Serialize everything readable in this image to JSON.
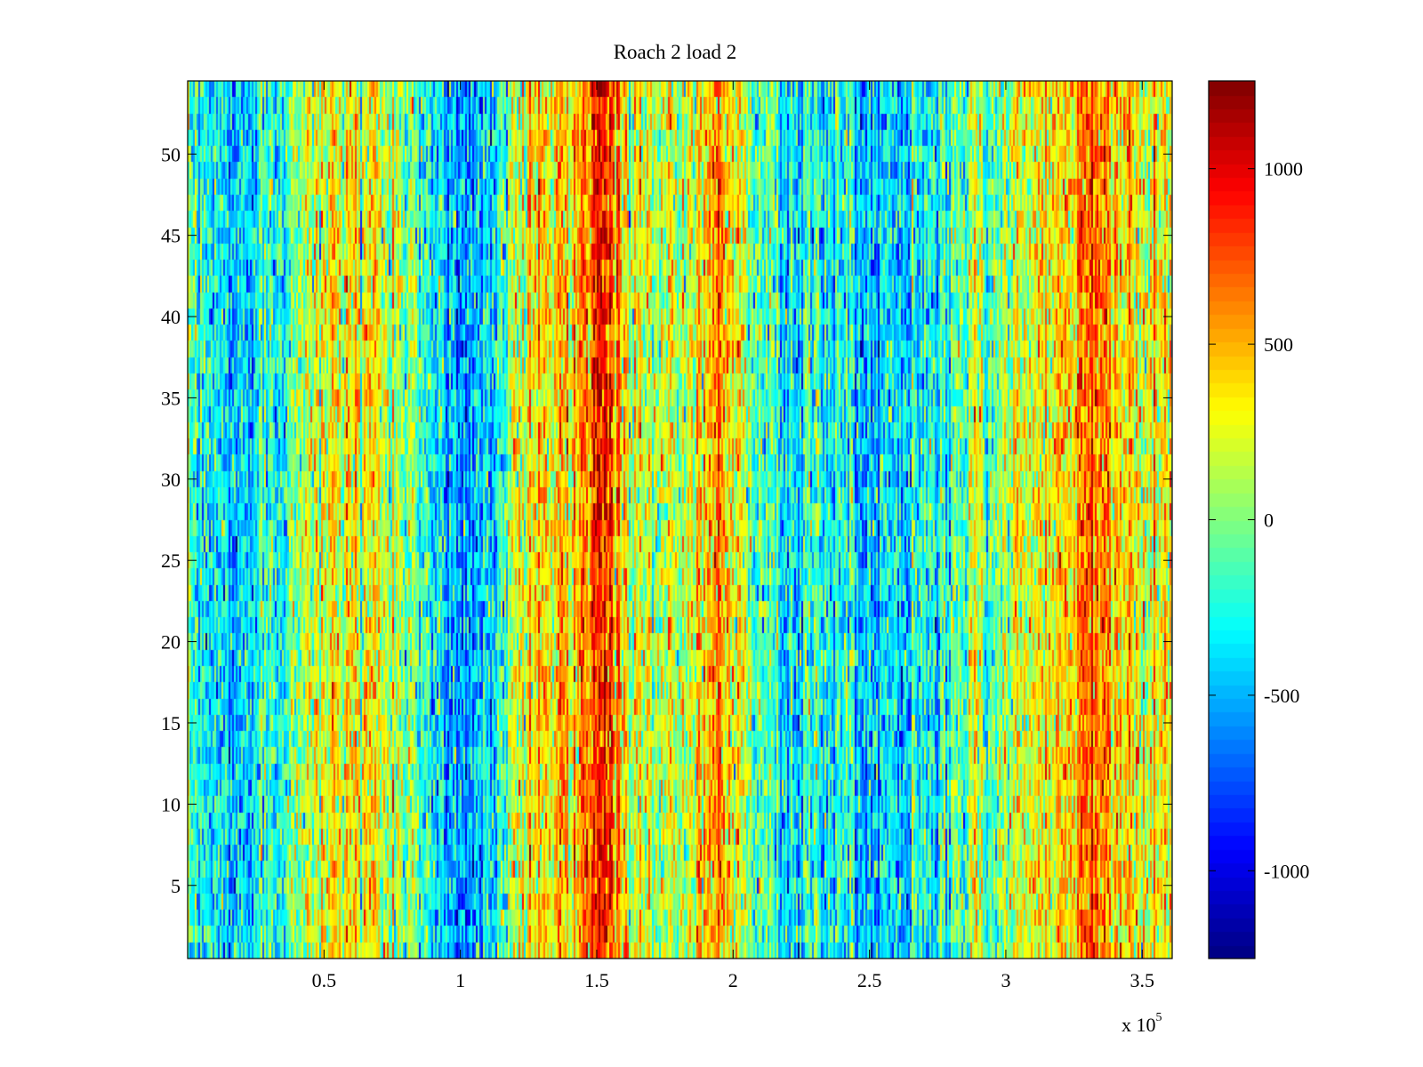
{
  "chart_data": {
    "type": "heatmap",
    "title": "Roach 2 load 2",
    "xlabel": "",
    "ylabel": "",
    "x_multiplier": {
      "base": "x 10",
      "exponent": "5"
    },
    "xlim": [
      0,
      361000
    ],
    "ylim": [
      0.5,
      54.5
    ],
    "x_ticks": [
      50000,
      100000,
      150000,
      200000,
      250000,
      300000,
      350000
    ],
    "x_tick_labels": [
      "0.5",
      "1",
      "1.5",
      "2",
      "2.5",
      "3",
      "3.5"
    ],
    "y_ticks": [
      5,
      10,
      15,
      20,
      25,
      30,
      35,
      40,
      45,
      50
    ],
    "y_tick_labels": [
      "5",
      "10",
      "15",
      "20",
      "25",
      "30",
      "35",
      "40",
      "45",
      "50"
    ],
    "rows": 54,
    "colormap": "jet",
    "clim": [
      -1250,
      1250
    ],
    "colorbar": {
      "ticks": [
        -1000,
        -500,
        0,
        500,
        1000
      ],
      "tick_labels": [
        "-1000",
        "-500",
        "0",
        "500",
        "1000"
      ]
    },
    "column_profile": {
      "x": [
        0,
        10000,
        18000,
        30000,
        45000,
        55000,
        65000,
        75000,
        85000,
        95000,
        103000,
        110000,
        117000,
        120000,
        128000,
        137000,
        145000,
        151000,
        157000,
        165000,
        175000,
        185000,
        193000,
        200000,
        210000,
        225000,
        240000,
        250000,
        260000,
        270000,
        283000,
        295000,
        305000,
        315000,
        325000,
        332000,
        337000,
        345000,
        355000,
        361000
      ],
      "values": [
        -250,
        -350,
        -450,
        -150,
        100,
        300,
        320,
        150,
        -150,
        -400,
        -600,
        -400,
        -50,
        250,
        400,
        380,
        550,
        900,
        550,
        50,
        150,
        350,
        550,
        300,
        -100,
        -350,
        -300,
        -500,
        -400,
        -350,
        -50,
        0,
        250,
        300,
        500,
        750,
        600,
        350,
        250,
        150
      ]
    },
    "grid": false,
    "legend": "colorbar-right"
  }
}
